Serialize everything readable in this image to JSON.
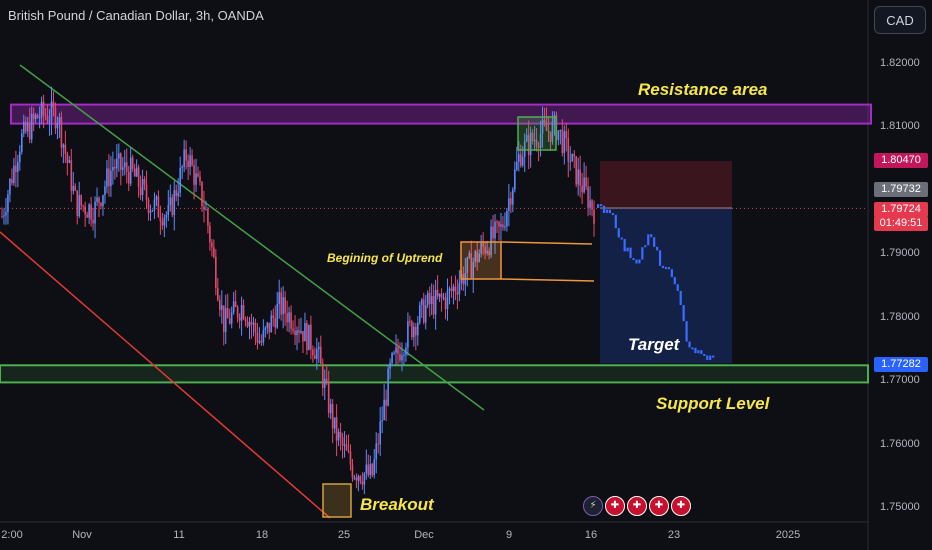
{
  "header": {
    "symbol_title": "British Pound / Canadian Dollar, 3h, OANDA",
    "currency_button": "CAD"
  },
  "annotations": {
    "resistance": "Resistance area",
    "uptrend": "Begining of Uptrend",
    "target": "Target",
    "support": "Support Level",
    "breakout": "Breakout"
  },
  "price_tags": {
    "stop": "1.80470",
    "last_gray": "1.79732",
    "current": "1.79724",
    "countdown": "01:49:51",
    "target": "1.77282"
  },
  "events": {
    "flash_icon": "lightning-icon",
    "flag_icon": "uk-flag-icon"
  },
  "colors": {
    "background": "#0e0f14",
    "up": "#5b8cff",
    "down": "#e8496b",
    "resistance": "#a32cc4",
    "support": "#4caf50",
    "trendline_red": "#e53935",
    "trendline_green": "#43a047",
    "annotation": "#f6e64b"
  },
  "chart_data": {
    "type": "candlestick",
    "title": "British Pound / Canadian Dollar, 3h, OANDA",
    "y_axis": {
      "ticks": [
        1.82,
        1.81,
        1.79,
        1.78,
        1.77,
        1.76,
        1.75
      ],
      "tick_labels": [
        "1.82000",
        "1.81000",
        "1.79000",
        "1.78000",
        "1.77000",
        "1.76000",
        "1.75000"
      ],
      "ylim": [
        1.7485,
        1.829
      ]
    },
    "x_axis": {
      "tick_labels": [
        "2:00",
        "Nov",
        "11",
        "18",
        "25",
        "Dec",
        "9",
        "16",
        "23",
        "2025"
      ]
    },
    "grid": false,
    "path_close": [
      1.796,
      1.808,
      1.812,
      1.812,
      1.798,
      1.797,
      1.804,
      1.803,
      1.798,
      1.796,
      1.806,
      1.797,
      1.779,
      1.782,
      1.776,
      1.782,
      1.779,
      1.775,
      1.762,
      1.756,
      1.755,
      1.772,
      1.778,
      1.782,
      1.783,
      1.787,
      1.791,
      1.794,
      1.806,
      1.809,
      1.81,
      1.803,
      1.797
    ],
    "resistance_zone": [
      1.8106,
      1.8136
    ],
    "support_zone": [
      1.7698,
      1.7725
    ],
    "stop_level": 1.8047,
    "entry_level": 1.7973,
    "current_price": 1.79724,
    "target_level": 1.77282,
    "projection": [
      1.7973,
      1.797,
      1.791,
      1.789,
      1.793,
      1.788,
      1.786,
      1.776,
      1.774,
      1.7735
    ]
  }
}
